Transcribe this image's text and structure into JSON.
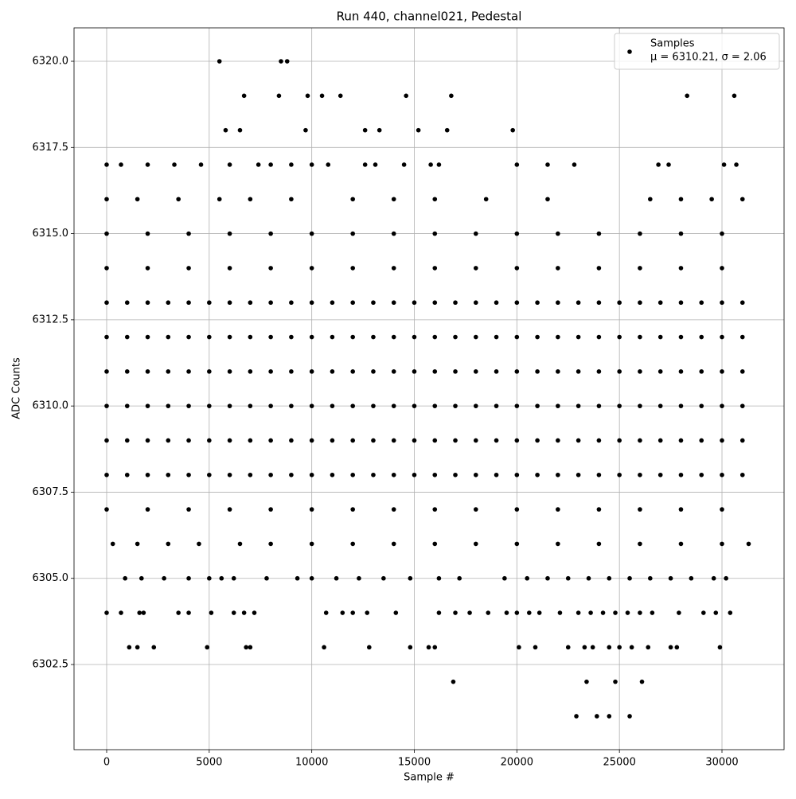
{
  "chart_data": {
    "type": "scatter",
    "title": "Run 440, channel021, Pedestal",
    "x_label": "Sample #",
    "y_label": "ADC Counts",
    "xlim": [
      -1591,
      33027
    ],
    "ylim": [
      6300.03,
      6320.97
    ],
    "xticks": [
      0,
      5000,
      10000,
      15000,
      20000,
      25000,
      30000
    ],
    "yticks": [
      6302.5,
      {
        "value": 6305,
        "label": "6305.0"
      },
      6307.5,
      {
        "value": 6310,
        "label": "6310.0"
      },
      6312.5,
      {
        "value": 6315,
        "label": "6315.0"
      },
      6317.5,
      {
        "value": 6320,
        "label": "6320.0"
      }
    ],
    "grid": true,
    "legend": "upper right",
    "legend_note": "μ = 6310.21, σ = 2.06",
    "series": [
      {
        "name": "Samples",
        "color": "#000000",
        "x": [
          0,
          1000,
          2000,
          3000,
          4000,
          5000,
          6000,
          7000,
          8000,
          9000,
          10000,
          11000,
          12000,
          13000,
          14000,
          15000,
          16000,
          17000,
          18000,
          19000,
          20000,
          21000,
          22000,
          23000,
          24000,
          25000,
          26000,
          27000,
          28000,
          29000,
          30000,
          31000
        ],
        "values": [
          6310,
          6310,
          6310,
          6310,
          6310,
          6310,
          6310,
          6310,
          6310,
          6310,
          6310,
          6310,
          6310,
          6310,
          6310,
          6310,
          6310,
          6310,
          6310,
          6310,
          6310,
          6310,
          6310,
          6310,
          6310,
          6310,
          6310,
          6310,
          6310,
          6310,
          6310,
          6310
        ]
      },
      {
        "color": "#000000",
        "x": [
          0,
          1000,
          2000,
          3000,
          4000,
          5000,
          6000,
          7000,
          8000,
          9000,
          10000,
          11000,
          12000,
          13000,
          14000,
          15000,
          16000,
          17000,
          18000,
          19000,
          20000,
          21000,
          22000,
          23000,
          24000,
          25000,
          26000,
          27000,
          28000,
          29000,
          30000,
          31000
        ],
        "values": [
          6309,
          6309,
          6309,
          6309,
          6309,
          6309,
          6309,
          6309,
          6309,
          6309,
          6309,
          6309,
          6309,
          6309,
          6309,
          6309,
          6309,
          6309,
          6309,
          6309,
          6309,
          6309,
          6309,
          6309,
          6309,
          6309,
          6309,
          6309,
          6309,
          6309,
          6309,
          6309
        ]
      },
      {
        "color": "#000000",
        "x": [
          0,
          1000,
          2000,
          3000,
          4000,
          5000,
          6000,
          7000,
          8000,
          9000,
          10000,
          11000,
          12000,
          13000,
          14000,
          15000,
          16000,
          17000,
          18000,
          19000,
          20000,
          21000,
          22000,
          23000,
          24000,
          25000,
          26000,
          27000,
          28000,
          29000,
          30000,
          31000
        ],
        "values": [
          6311,
          6311,
          6311,
          6311,
          6311,
          6311,
          6311,
          6311,
          6311,
          6311,
          6311,
          6311,
          6311,
          6311,
          6311,
          6311,
          6311,
          6311,
          6311,
          6311,
          6311,
          6311,
          6311,
          6311,
          6311,
          6311,
          6311,
          6311,
          6311,
          6311,
          6311,
          6311
        ]
      },
      {
        "color": "#000000",
        "x": [
          0,
          1000,
          2000,
          3000,
          4000,
          5000,
          6000,
          7000,
          8000,
          9000,
          10000,
          11000,
          12000,
          13000,
          14000,
          15000,
          16000,
          17000,
          18000,
          19000,
          20000,
          21000,
          22000,
          23000,
          24000,
          25000,
          26000,
          27000,
          28000,
          29000,
          30000,
          31000
        ],
        "values": [
          6312,
          6312,
          6312,
          6312,
          6312,
          6312,
          6312,
          6312,
          6312,
          6312,
          6312,
          6312,
          6312,
          6312,
          6312,
          6312,
          6312,
          6312,
          6312,
          6312,
          6312,
          6312,
          6312,
          6312,
          6312,
          6312,
          6312,
          6312,
          6312,
          6312,
          6312,
          6312
        ]
      },
      {
        "color": "#000000",
        "x": [
          0,
          1000,
          2000,
          3000,
          4000,
          5000,
          6000,
          7000,
          8000,
          9000,
          10000,
          11000,
          12000,
          13000,
          14000,
          15000,
          16000,
          17000,
          18000,
          19000,
          20000,
          21000,
          22000,
          23000,
          24000,
          25000,
          26000,
          27000,
          28000,
          29000,
          30000,
          31000
        ],
        "values": [
          6308,
          6308,
          6308,
          6308,
          6308,
          6308,
          6308,
          6308,
          6308,
          6308,
          6308,
          6308,
          6308,
          6308,
          6308,
          6308,
          6308,
          6308,
          6308,
          6308,
          6308,
          6308,
          6308,
          6308,
          6308,
          6308,
          6308,
          6308,
          6308,
          6308,
          6308,
          6308
        ]
      },
      {
        "color": "#000000",
        "x": [
          0,
          1000,
          2000,
          3000,
          4000,
          5000,
          6000,
          7000,
          8000,
          9000,
          10000,
          11000,
          12000,
          13000,
          14000,
          15000,
          16000,
          17000,
          18000,
          19000,
          20000,
          21000,
          22000,
          23000,
          24000,
          25000,
          26000,
          27000,
          28000,
          29000,
          30000,
          31000
        ],
        "values": [
          6313,
          6313,
          6313,
          6313,
          6313,
          6313,
          6313,
          6313,
          6313,
          6313,
          6313,
          6313,
          6313,
          6313,
          6313,
          6313,
          6313,
          6313,
          6313,
          6313,
          6313,
          6313,
          6313,
          6313,
          6313,
          6313,
          6313,
          6313,
          6313,
          6313,
          6313,
          6313
        ]
      },
      {
        "color": "#000000",
        "x": [
          0,
          2000,
          4000,
          6000,
          8000,
          10000,
          12000,
          14000,
          16000,
          18000,
          20000,
          22000,
          24000,
          26000,
          28000,
          30000
        ],
        "values": [
          6307,
          6307,
          6307,
          6307,
          6307,
          6307,
          6307,
          6307,
          6307,
          6307,
          6307,
          6307,
          6307,
          6307,
          6307,
          6307
        ]
      },
      {
        "color": "#000000",
        "x": [
          0,
          2000,
          4000,
          6000,
          8000,
          10000,
          12000,
          14000,
          16000,
          18000,
          20000,
          22000,
          24000,
          26000,
          28000,
          30000
        ],
        "values": [
          6314,
          6314,
          6314,
          6314,
          6314,
          6314,
          6314,
          6314,
          6314,
          6314,
          6314,
          6314,
          6314,
          6314,
          6314,
          6314
        ]
      },
      {
        "color": "#000000",
        "x": [
          0,
          2000,
          4000,
          6000,
          8000,
          10000,
          12000,
          14000,
          16000,
          18000,
          20000,
          22000,
          24000,
          26000,
          28000,
          30000
        ],
        "values": [
          6315,
          6315,
          6315,
          6315,
          6315,
          6315,
          6315,
          6315,
          6315,
          6315,
          6315,
          6315,
          6315,
          6315,
          6315,
          6315
        ]
      },
      {
        "color": "#000000",
        "x": [
          0,
          1500,
          3500,
          5500,
          7000,
          9000,
          12000,
          14000,
          16000,
          18500,
          21500,
          26500,
          28000,
          29500,
          31000
        ],
        "values": [
          6316,
          6316,
          6316,
          6316,
          6316,
          6316,
          6316,
          6316,
          6316,
          6316,
          6316,
          6316,
          6316,
          6316,
          6316
        ]
      },
      {
        "color": "#000000",
        "x": [
          300,
          1500,
          3000,
          4500,
          6500,
          8000,
          10000,
          12000,
          14000,
          16000,
          18000,
          20000,
          22000,
          24000,
          26000,
          28000,
          30000,
          31300
        ],
        "values": [
          6306,
          6306,
          6306,
          6306,
          6306,
          6306,
          6306,
          6306,
          6306,
          6306,
          6306,
          6306,
          6306,
          6306,
          6306,
          6306,
          6306,
          6306
        ]
      },
      {
        "color": "#000000",
        "x": [
          0,
          700,
          2000,
          3300,
          4600,
          6000,
          7400,
          8000,
          9000,
          10000,
          10800,
          12600,
          13100,
          14500,
          15800,
          16200,
          20000,
          21500,
          22800,
          26900,
          27400,
          30100,
          30700
        ],
        "values": [
          6317,
          6317,
          6317,
          6317,
          6317,
          6317,
          6317,
          6317,
          6317,
          6317,
          6317,
          6317,
          6317,
          6317,
          6317,
          6317,
          6317,
          6317,
          6317,
          6317,
          6317,
          6317,
          6317
        ]
      },
      {
        "color": "#000000",
        "x": [
          900,
          1700,
          2800,
          4000,
          5000,
          5600,
          6200,
          7800,
          9300,
          10000,
          11200,
          12300,
          13500,
          14800,
          16200,
          17200,
          19400,
          20500,
          21500,
          22500,
          23500,
          24500,
          25500,
          26500,
          27500,
          28500,
          29600,
          30200
        ],
        "values": [
          6305,
          6305,
          6305,
          6305,
          6305,
          6305,
          6305,
          6305,
          6305,
          6305,
          6305,
          6305,
          6305,
          6305,
          6305,
          6305,
          6305,
          6305,
          6305,
          6305,
          6305,
          6305,
          6305,
          6305,
          6305,
          6305,
          6305,
          6305
        ]
      },
      {
        "color": "#000000",
        "x": [
          0,
          700,
          1600,
          1800,
          3500,
          4000,
          5100,
          6200,
          6700,
          7200,
          10700,
          11500,
          12000,
          12700,
          14100,
          16200,
          17000,
          17700,
          18600,
          19500,
          20000,
          20600,
          21100,
          22100,
          23000,
          23600,
          24200,
          24800,
          25400,
          26000,
          26600,
          27900,
          29100,
          29700,
          30400
        ],
        "values": [
          6304,
          6304,
          6304,
          6304,
          6304,
          6304,
          6304,
          6304,
          6304,
          6304,
          6304,
          6304,
          6304,
          6304,
          6304,
          6304,
          6304,
          6304,
          6304,
          6304,
          6304,
          6304,
          6304,
          6304,
          6304,
          6304,
          6304,
          6304,
          6304,
          6304,
          6304,
          6304,
          6304,
          6304,
          6304
        ]
      },
      {
        "color": "#000000",
        "x": [
          5800,
          6500,
          9700,
          12600,
          13300,
          15200,
          16600,
          19800
        ],
        "values": [
          6318,
          6318,
          6318,
          6318,
          6318,
          6318,
          6318,
          6318
        ]
      },
      {
        "color": "#000000",
        "x": [
          6700,
          8400,
          9800,
          10500,
          11400,
          14600,
          16800,
          28300,
          30600
        ],
        "values": [
          6319,
          6319,
          6319,
          6319,
          6319,
          6319,
          6319,
          6319,
          6319
        ]
      },
      {
        "color": "#000000",
        "x": [
          5500,
          8500,
          8800
        ],
        "values": [
          6320,
          6320,
          6320
        ]
      },
      {
        "color": "#000000",
        "x": [
          1100,
          1500,
          2300,
          4900,
          6800,
          7000,
          10600,
          12800,
          14800,
          15700,
          16000,
          20100,
          20900,
          22500,
          23300,
          23700,
          24500,
          25000,
          25600,
          26400,
          27500,
          27800,
          29900
        ],
        "values": [
          6303,
          6303,
          6303,
          6303,
          6303,
          6303,
          6303,
          6303,
          6303,
          6303,
          6303,
          6303,
          6303,
          6303,
          6303,
          6303,
          6303,
          6303,
          6303,
          6303,
          6303,
          6303,
          6303
        ]
      },
      {
        "color": "#000000",
        "x": [
          16900,
          23400,
          24800,
          26100
        ],
        "values": [
          6302,
          6302,
          6302,
          6302
        ]
      },
      {
        "color": "#000000",
        "x": [
          22900,
          23900,
          24500,
          25500
        ],
        "values": [
          6301,
          6301,
          6301,
          6301
        ]
      }
    ]
  }
}
